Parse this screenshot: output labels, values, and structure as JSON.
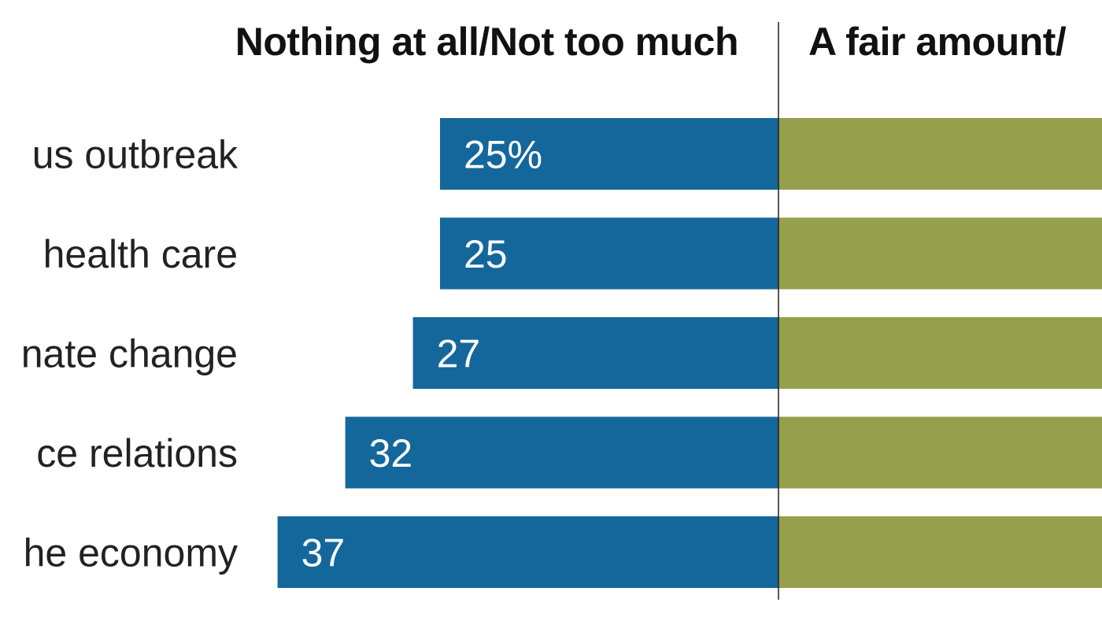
{
  "chart_data": {
    "type": "bar",
    "orientation": "horizontal-diverging",
    "headers": {
      "left": "Nothing at all/Not too much",
      "right": "A fair amount/"
    },
    "categories": [
      "us outbreak",
      "health care",
      "nate change",
      "ce relations",
      "he economy"
    ],
    "series": [
      {
        "name": "Nothing at all/Not too much",
        "values": [
          25,
          25,
          27,
          32,
          37
        ],
        "labels": [
          "25%",
          "25",
          "27",
          "32",
          "37"
        ],
        "color": "#14679a"
      },
      {
        "name": "A fair amount/",
        "color": "#969f4c"
      }
    ],
    "grid": false
  }
}
